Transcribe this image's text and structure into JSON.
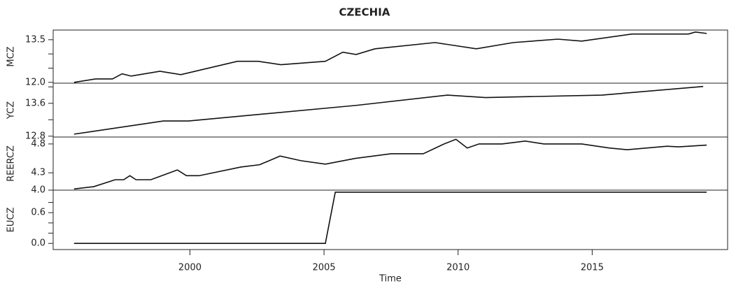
{
  "chart_data": {
    "type": "panels",
    "title": "CZECHIA",
    "xlabel": "Time",
    "xlim": [
      1994.9,
      2020.05
    ],
    "xticks": [
      2000,
      2005,
      2010,
      2015
    ],
    "panels": [
      {
        "type": "line",
        "ylabel": "MCZ",
        "color": "#111111",
        "ylim": [
          11.97,
          13.84
        ],
        "yticks": [
          {
            "value": 12,
            "label": "12.0"
          },
          13.5
        ],
        "yminor": [
          12.5,
          13
        ],
        "x": [
          1995.68,
          1996.48,
          1997.11,
          1997.47,
          1997.81,
          1998.88,
          1999.66,
          2001.77,
          2002.55,
          2003.39,
          2005.05,
          2005.7,
          2006.2,
          2006.9,
          2009.14,
          2010.68,
          2012.06,
          2013.72,
          2014.61,
          2016.48,
          2018.59,
          2018.85,
          2019.27
        ],
        "values": [
          12.0,
          12.12,
          12.12,
          12.3,
          12.22,
          12.39,
          12.27,
          12.74,
          12.74,
          12.62,
          12.74,
          13.06,
          12.98,
          13.18,
          13.4,
          13.18,
          13.4,
          13.52,
          13.45,
          13.7,
          13.7,
          13.77,
          13.72
        ]
      },
      {
        "type": "line",
        "ylabel": "YCZ",
        "color": "#111111",
        "ylim": [
          12.78,
          14.09
        ],
        "yticks": [
          12.8,
          13.6
        ],
        "yminor": [
          13.2,
          14
        ],
        "x": [
          1995.68,
          1999.01,
          1999.95,
          2006.2,
          2009.61,
          2011.02,
          2015.36,
          2019.14
        ],
        "values": [
          12.85,
          13.17,
          13.17,
          13.55,
          13.8,
          13.74,
          13.8,
          14.01
        ]
      },
      {
        "type": "line",
        "ylabel": "REERCZ",
        "color": "#111111",
        "ylim": [
          4.0,
          4.92
        ],
        "yticks": [
          {
            "value": 4,
            "label": "4.0"
          },
          4.3,
          4.8
        ],
        "yminor": [],
        "x": [
          1995.68,
          1996.41,
          1997.21,
          1997.53,
          1997.76,
          1997.99,
          1998.54,
          1999.53,
          1999.87,
          2000.34,
          2001.9,
          2002.6,
          2003.36,
          2004.14,
          2005.05,
          2006.17,
          2007.5,
          2008.7,
          2009.48,
          2009.92,
          2010.34,
          2010.78,
          2011.64,
          2012.5,
          2013.2,
          2014.61,
          2015.63,
          2016.3,
          2017.79,
          2018.23,
          2019.27
        ],
        "values": [
          4.02,
          4.06,
          4.18,
          4.18,
          4.25,
          4.18,
          4.18,
          4.35,
          4.25,
          4.25,
          4.4,
          4.44,
          4.59,
          4.51,
          4.45,
          4.55,
          4.63,
          4.63,
          4.8,
          4.88,
          4.73,
          4.8,
          4.8,
          4.85,
          4.8,
          4.8,
          4.73,
          4.7,
          4.76,
          4.75,
          4.78
        ]
      },
      {
        "type": "line",
        "ylabel": "EUCZ",
        "color": "#111111",
        "ylim": [
          -0.12,
          1.04
        ],
        "yticks": [
          {
            "value": 0,
            "label": "0.0"
          },
          0.6
        ],
        "yminor": [
          0.2,
          0.4,
          0.8
        ],
        "x": [
          1995.68,
          2005.05,
          2005.42,
          2019.27
        ],
        "values": [
          0,
          0,
          1,
          1
        ]
      }
    ]
  }
}
